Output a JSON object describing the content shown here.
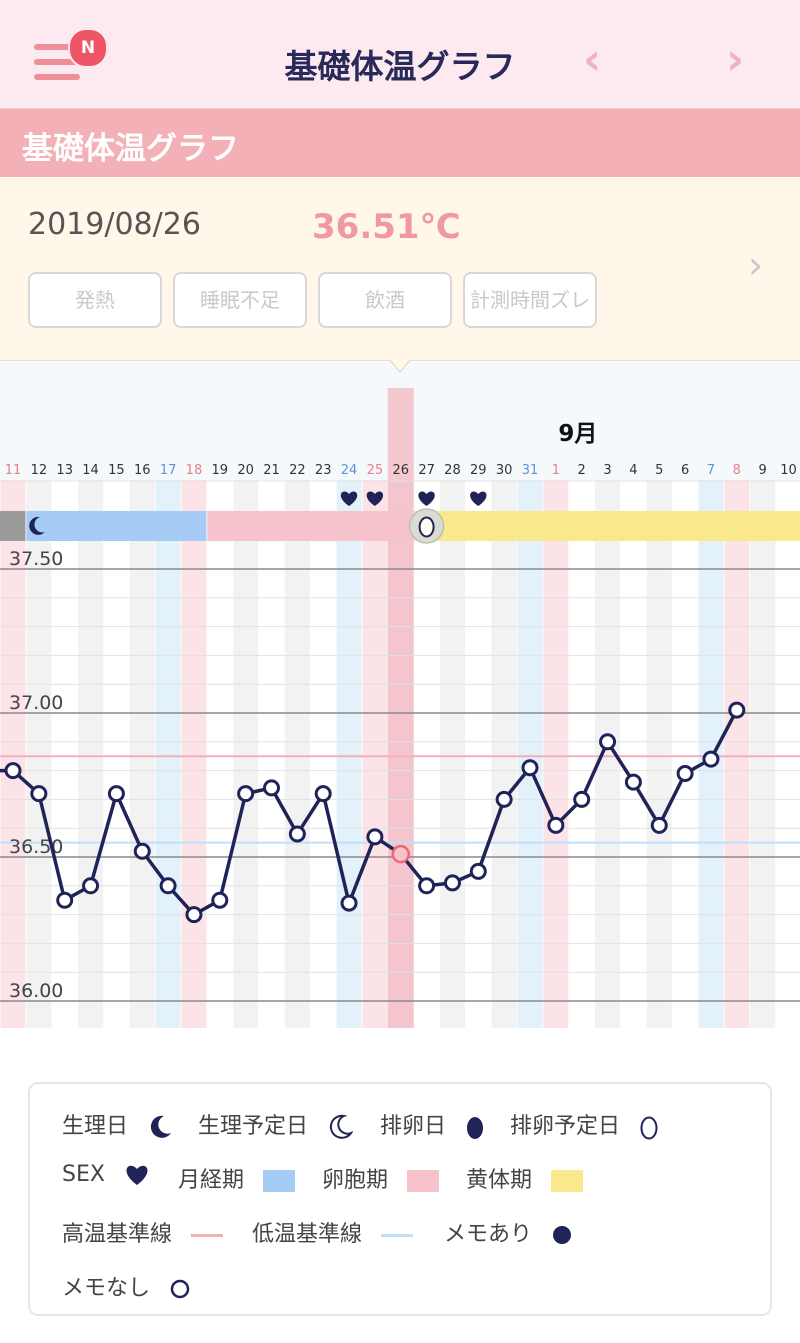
{
  "header": {
    "title": "基礎体温グラフ",
    "badge": "N",
    "prev": "‹",
    "next": "›"
  },
  "section": {
    "title": "基礎体温グラフ"
  },
  "record": {
    "date": "2019/08/26",
    "temperature": "36.51℃",
    "tags": [
      "発熱",
      "睡眠不足",
      "飲酒",
      "計測時間ズレ"
    ]
  },
  "colors": {
    "menstrual": "#a6ccf6",
    "follicular": "#f6c3cc",
    "luteal": "#fae88d",
    "line": "#202357",
    "high": "#f1b1b7",
    "low": "#bfe0fa",
    "selected": "#f4b6c0"
  },
  "chart_data": {
    "type": "line",
    "month_label": "9月",
    "ylim": [
      36.0,
      37.5
    ],
    "y_ticks": [
      "36.00",
      "36.50",
      "37.00",
      "37.50"
    ],
    "high_baseline": 36.85,
    "low_baseline": 36.55,
    "days": [
      "11",
      "12",
      "13",
      "14",
      "15",
      "16",
      "17",
      "18",
      "19",
      "20",
      "21",
      "22",
      "23",
      "24",
      "25",
      "26",
      "27",
      "28",
      "29",
      "30",
      "31",
      "1",
      "2",
      "3",
      "4",
      "5",
      "6",
      "7",
      "8",
      "9",
      "10"
    ],
    "weekday_type": [
      "sun",
      "",
      "",
      "",
      "",
      "",
      "sat",
      "sun",
      "",
      "",
      "",
      "",
      "",
      "sat",
      "sun",
      "",
      "",
      "",
      "",
      "",
      "sat",
      "sun",
      "",
      "",
      "",
      "",
      "",
      "sat",
      "sun",
      "",
      ""
    ],
    "series": [
      {
        "values": [
          36.8,
          36.72,
          36.35,
          36.4,
          36.72,
          36.52,
          36.4,
          36.3,
          36.35,
          36.72,
          36.74,
          36.58,
          36.72,
          36.34,
          36.57,
          36.51,
          36.4,
          36.41,
          36.45,
          36.7,
          36.81,
          36.61,
          36.7,
          36.9,
          36.76,
          36.61,
          36.79,
          36.84,
          37.01
        ]
      }
    ],
    "sex_days": [
      "24",
      "25",
      "27",
      "29"
    ],
    "selected_day": "26",
    "ovulation_day": "27",
    "phases": [
      {
        "name": "menstrual",
        "from": "12",
        "to": "18"
      },
      {
        "name": "follicular",
        "from": "19",
        "to": "26"
      },
      {
        "name": "luteal",
        "from": "27",
        "to": "10"
      }
    ]
  },
  "legend": {
    "period": "生理日",
    "period_expected": "生理予定日",
    "ovulation": "排卵日",
    "ovulation_expected": "排卵予定日",
    "sex": "SEX",
    "menstrual_phase": "月経期",
    "follicular_phase": "卵胞期",
    "luteal_phase": "黄体期",
    "high_line": "高温基準線",
    "low_line": "低温基準線",
    "memo_yes": "メモあり",
    "memo_no": "メモなし"
  }
}
